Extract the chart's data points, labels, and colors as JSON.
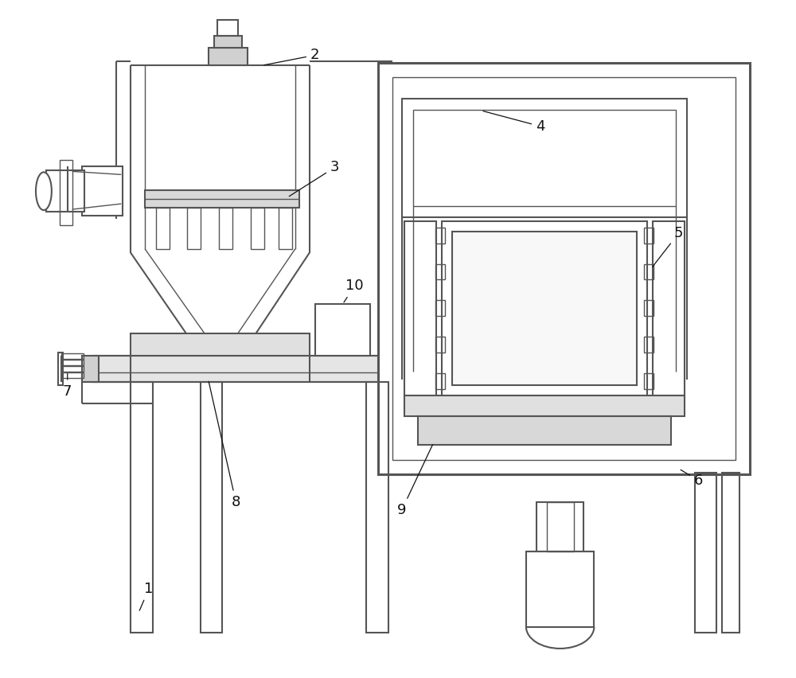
{
  "bg_color": "#ffffff",
  "lc": "#555555",
  "lw": 1.5,
  "tlw": 1.0,
  "thk": 2.2,
  "fig_width": 10.0,
  "fig_height": 8.52,
  "label_fontsize": 13
}
